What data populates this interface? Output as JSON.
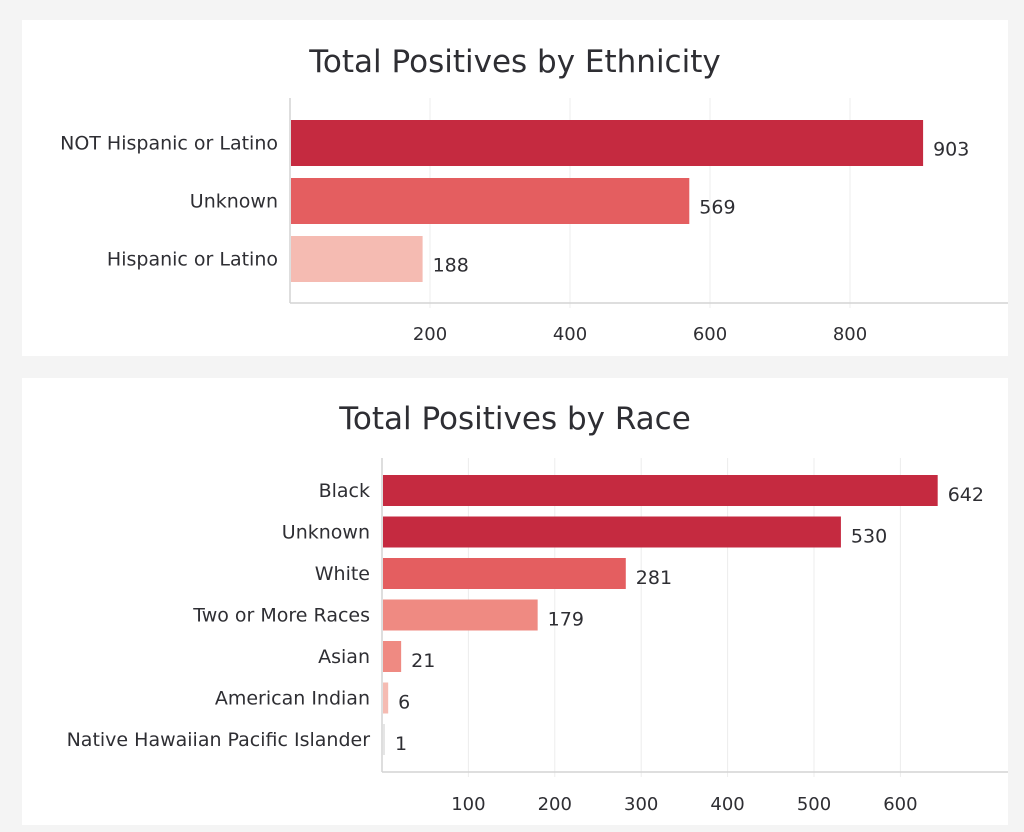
{
  "chart_data": [
    {
      "type": "bar",
      "orientation": "horizontal",
      "title": "Total Positives by Ethnicity",
      "xlabel": "",
      "ylabel": "",
      "categories": [
        "NOT Hispanic or Latino",
        "Unknown",
        "Hispanic or Latino"
      ],
      "values": [
        903,
        569,
        188
      ],
      "value_labels": [
        "903",
        "569",
        "188"
      ],
      "bar_colors": [
        "#c52a40",
        "#e45e60",
        "#f5bbb2"
      ],
      "xticks": [
        200,
        400,
        600,
        800
      ],
      "xtick_labels": [
        "200",
        "400",
        "600",
        "800"
      ],
      "xlim": [
        0,
        1000
      ],
      "grid": true,
      "legend": "none"
    },
    {
      "type": "bar",
      "orientation": "horizontal",
      "title": "Total Positives by Race",
      "xlabel": "",
      "ylabel": "",
      "categories": [
        "Black",
        "Unknown",
        "White",
        "Two or More Races",
        "Asian",
        "American Indian",
        "Native Hawaiian Pacific Islander"
      ],
      "values": [
        642,
        530,
        281,
        179,
        21,
        6,
        1
      ],
      "value_labels": [
        "642",
        "530",
        "281",
        "179",
        "21",
        "6",
        "1"
      ],
      "bar_colors": [
        "#c52a40",
        "#c52a40",
        "#e45e60",
        "#ef8a82",
        "#ef8a82",
        "#f5bbb2",
        "#e5e5e5"
      ],
      "xticks": [
        100,
        200,
        300,
        400,
        500,
        600
      ],
      "xtick_labels": [
        "100",
        "200",
        "300",
        "400",
        "500",
        "600"
      ],
      "xlim": [
        0,
        725
      ],
      "grid": true,
      "legend": "none"
    }
  ]
}
